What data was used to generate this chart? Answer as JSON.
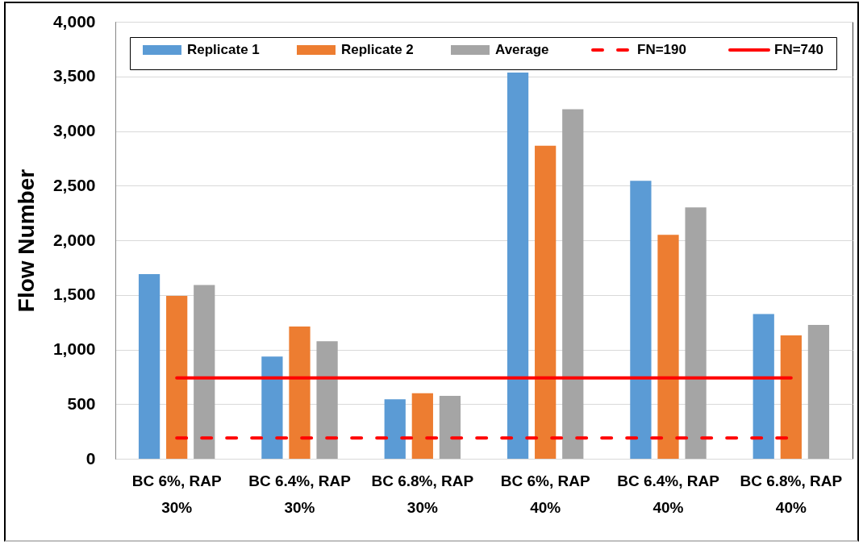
{
  "chart_data": {
    "type": "bar",
    "ylabel": "Flow Number",
    "categories": [
      "BC 6%, RAP 30%",
      "BC 6.4%, RAP 30%",
      "BC 6.8%, RAP 30%",
      "BC 6%, RAP 40%",
      "BC 6.4%, RAP 40%",
      "BC 6.8%, RAP 40%"
    ],
    "series": [
      {
        "name": "Replicate 1",
        "color": "#5b9bd5",
        "values": [
          1690,
          935,
          545,
          3535,
          2545,
          1325
        ]
      },
      {
        "name": "Replicate 2",
        "color": "#ed7d31",
        "values": [
          1490,
          1210,
          600,
          2865,
          2050,
          1130
        ]
      },
      {
        "name": "Average",
        "color": "#a5a5a5",
        "values": [
          1590,
          1075,
          575,
          3200,
          2300,
          1225
        ]
      },
      {
        "name": "FN=190",
        "type": "line",
        "color": "#ff0000",
        "line_style": "dashed",
        "values": [
          190,
          190,
          190,
          190,
          190,
          190
        ]
      },
      {
        "name": "FN=740",
        "type": "line",
        "color": "#ff0000",
        "line_style": "solid",
        "values": [
          740,
          740,
          740,
          740,
          740,
          740
        ]
      }
    ],
    "ylim": [
      0,
      4000
    ],
    "yticks": [
      0,
      500,
      {
        "value": 1000,
        "label": "1,000"
      },
      {
        "value": 1500,
        "label": "1,500"
      },
      {
        "value": 2000,
        "label": "2,000"
      },
      {
        "value": 2500,
        "label": "2,500"
      },
      {
        "value": 3000,
        "label": "3,000"
      },
      {
        "value": 3500,
        "label": "3,500"
      },
      {
        "value": 4000,
        "label": "4,000"
      }
    ],
    "grid": "y",
    "legend": "top"
  }
}
